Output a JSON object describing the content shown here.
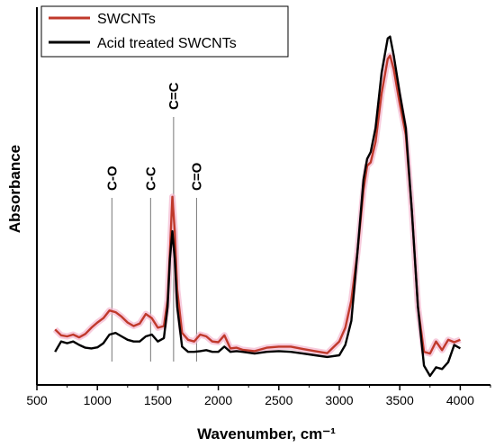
{
  "chart_data": {
    "type": "line",
    "title": "",
    "xlabel": "Wavenumber, cm⁻¹",
    "ylabel": "Absorbance",
    "xlim": [
      500,
      4250
    ],
    "ylim": [
      0,
      1
    ],
    "x_ticks": [
      500,
      1000,
      1500,
      2000,
      2500,
      3000,
      3500,
      4000
    ],
    "y_ticks_shown": false,
    "grid": false,
    "legend_position": "top-left",
    "series": [
      {
        "name": "SWCNTs",
        "color": "#c0392b",
        "x": [
          650,
          700,
          750,
          800,
          850,
          900,
          950,
          1000,
          1050,
          1100,
          1150,
          1200,
          1250,
          1300,
          1350,
          1400,
          1450,
          1500,
          1550,
          1580,
          1600,
          1620,
          1640,
          1660,
          1700,
          1750,
          1800,
          1850,
          1900,
          1950,
          2000,
          2050,
          2100,
          2150,
          2200,
          2300,
          2400,
          2500,
          2600,
          2700,
          2800,
          2900,
          3000,
          3050,
          3100,
          3150,
          3200,
          3230,
          3260,
          3300,
          3350,
          3400,
          3420,
          3450,
          3500,
          3550,
          3600,
          3650,
          3700,
          3750,
          3800,
          3850,
          3900,
          3950,
          4000
        ],
        "y": [
          0.135,
          0.118,
          0.115,
          0.12,
          0.112,
          0.122,
          0.14,
          0.155,
          0.168,
          0.19,
          0.185,
          0.172,
          0.155,
          0.145,
          0.152,
          0.18,
          0.168,
          0.14,
          0.145,
          0.22,
          0.36,
          0.52,
          0.42,
          0.25,
          0.125,
          0.105,
          0.1,
          0.12,
          0.115,
          0.1,
          0.098,
          0.118,
          0.08,
          0.082,
          0.076,
          0.072,
          0.082,
          0.085,
          0.085,
          0.078,
          0.072,
          0.066,
          0.1,
          0.14,
          0.22,
          0.36,
          0.54,
          0.61,
          0.62,
          0.68,
          0.82,
          0.92,
          0.93,
          0.89,
          0.79,
          0.7,
          0.48,
          0.2,
          0.07,
          0.065,
          0.1,
          0.075,
          0.105,
          0.098,
          0.105
        ]
      },
      {
        "name": "Acid treated SWCNTs",
        "color": "#000000",
        "x": [
          650,
          700,
          750,
          800,
          850,
          900,
          950,
          1000,
          1050,
          1100,
          1150,
          1200,
          1250,
          1300,
          1350,
          1400,
          1450,
          1500,
          1550,
          1580,
          1600,
          1620,
          1640,
          1660,
          1700,
          1750,
          1800,
          1850,
          1900,
          1950,
          2000,
          2050,
          2100,
          2150,
          2200,
          2300,
          2400,
          2500,
          2600,
          2700,
          2800,
          2900,
          3000,
          3050,
          3100,
          3150,
          3200,
          3230,
          3260,
          3300,
          3350,
          3400,
          3420,
          3450,
          3500,
          3550,
          3600,
          3650,
          3700,
          3750,
          3800,
          3850,
          3900,
          3950,
          4000
        ],
        "y": [
          0.07,
          0.1,
          0.095,
          0.1,
          0.09,
          0.082,
          0.08,
          0.083,
          0.095,
          0.12,
          0.125,
          0.115,
          0.105,
          0.1,
          0.1,
          0.115,
          0.12,
          0.1,
          0.11,
          0.2,
          0.34,
          0.42,
          0.34,
          0.2,
          0.085,
          0.07,
          0.07,
          0.072,
          0.075,
          0.07,
          0.07,
          0.085,
          0.07,
          0.072,
          0.07,
          0.065,
          0.07,
          0.072,
          0.07,
          0.065,
          0.06,
          0.055,
          0.06,
          0.09,
          0.16,
          0.36,
          0.57,
          0.63,
          0.65,
          0.72,
          0.88,
          0.98,
          0.985,
          0.93,
          0.82,
          0.72,
          0.48,
          0.2,
          0.03,
          0.0,
          0.025,
          0.02,
          0.04,
          0.09,
          0.08
        ]
      }
    ],
    "annotations": [
      {
        "text": "C-O",
        "x": 1120
      },
      {
        "text": "C-C",
        "x": 1440
      },
      {
        "text": "C=C",
        "x": 1630
      },
      {
        "text": "C=O",
        "x": 1820
      }
    ]
  }
}
